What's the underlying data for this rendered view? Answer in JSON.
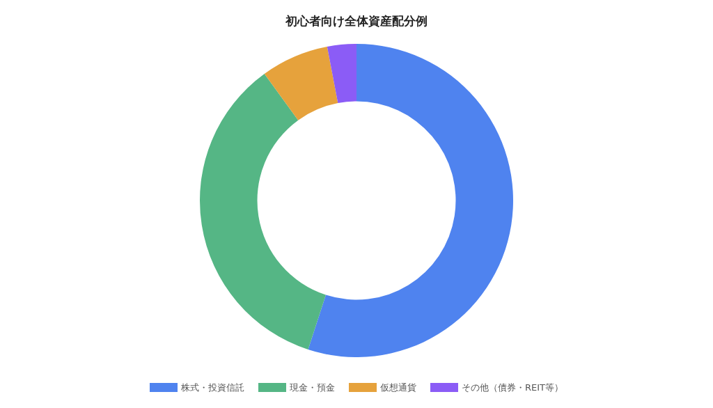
{
  "chart_data": {
    "type": "donut",
    "title": "初心者向け全体資産配分例",
    "categories": [
      "株式・投資信託",
      "現金・預金",
      "仮想通貨",
      "その他（債券・REIT等）"
    ],
    "values": [
      55,
      35,
      7,
      3
    ],
    "colors": [
      "#4f83ef",
      "#55b685",
      "#e6a23c",
      "#8b5cf6"
    ],
    "legend": "bottom"
  }
}
